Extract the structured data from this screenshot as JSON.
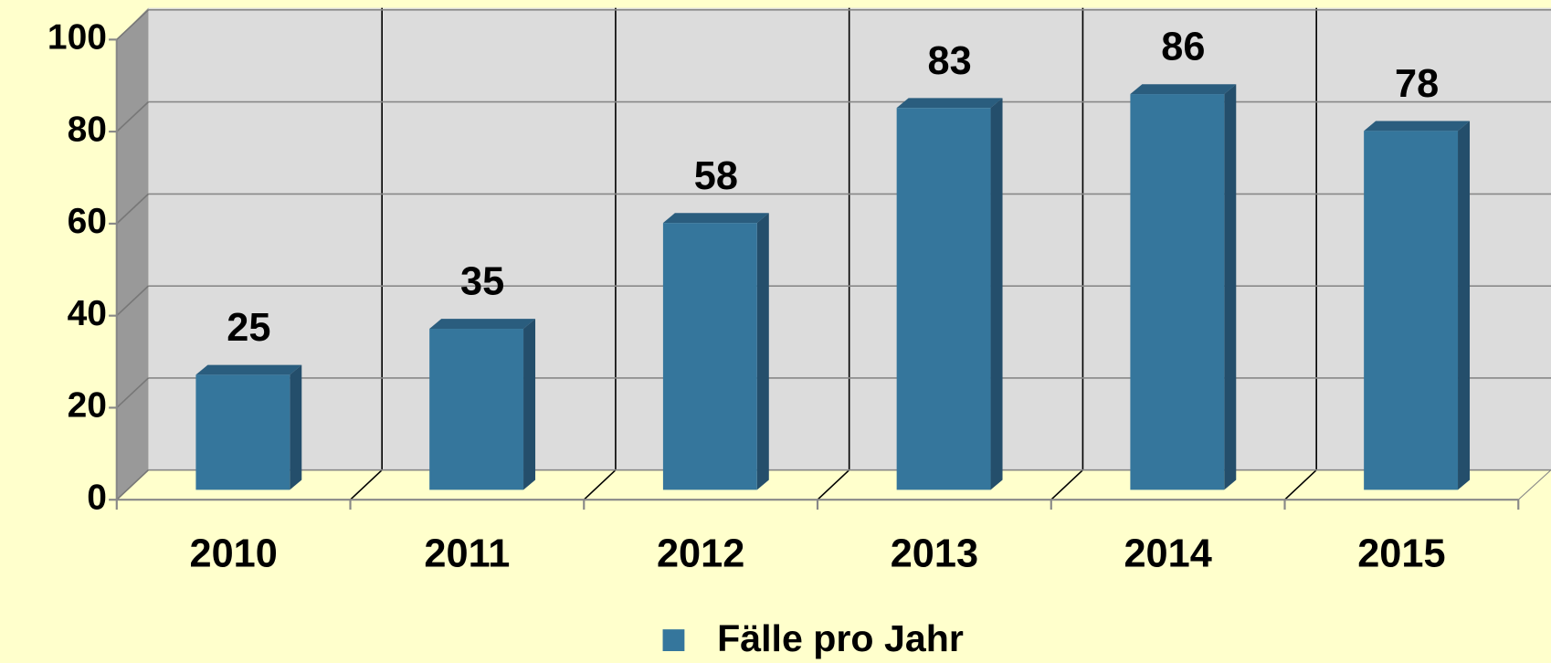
{
  "chart_data": {
    "type": "bar",
    "categories": [
      "2010",
      "2011",
      "2012",
      "2013",
      "2014",
      "2015"
    ],
    "series": [
      {
        "name": "Fälle pro Jahr",
        "color": "#35769c",
        "values": [
          25,
          35,
          58,
          83,
          86,
          78
        ]
      }
    ],
    "ylim": [
      0,
      100
    ],
    "yticks": [
      0,
      20,
      40,
      60,
      80,
      100
    ],
    "grid": true,
    "legend": "bottom"
  }
}
